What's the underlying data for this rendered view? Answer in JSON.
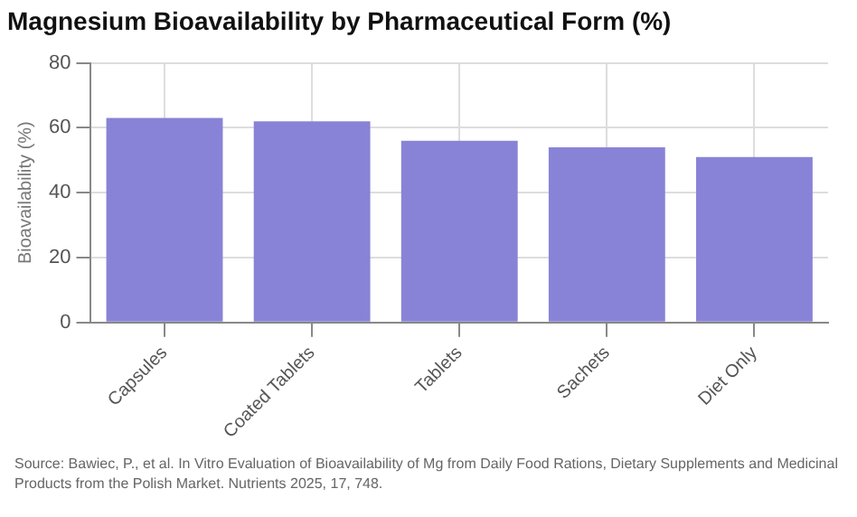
{
  "chart_data": {
    "type": "bar",
    "title": "Magnesium Bioavailability by Pharmaceutical Form (%)",
    "ylabel": "Bioavailability (%)",
    "categories": [
      "Capsules",
      "Coated Tablets",
      "Tablets",
      "Sachets",
      "Diet Only"
    ],
    "values": [
      63,
      62,
      56,
      54,
      51
    ],
    "color": "#8883d6",
    "ylim": [
      0,
      80
    ],
    "yticks": [
      0,
      20,
      40,
      60,
      80
    ],
    "grid": true,
    "legend": false,
    "annotations": [
      "Source: Bawiec, P., et al. In Vitro Evaluation of Bioavailability of Mg from Daily Food Rations, Dietary Supplements and Medicinal Products from the Polish Market. Nutrients 2025, 17, 748."
    ]
  }
}
